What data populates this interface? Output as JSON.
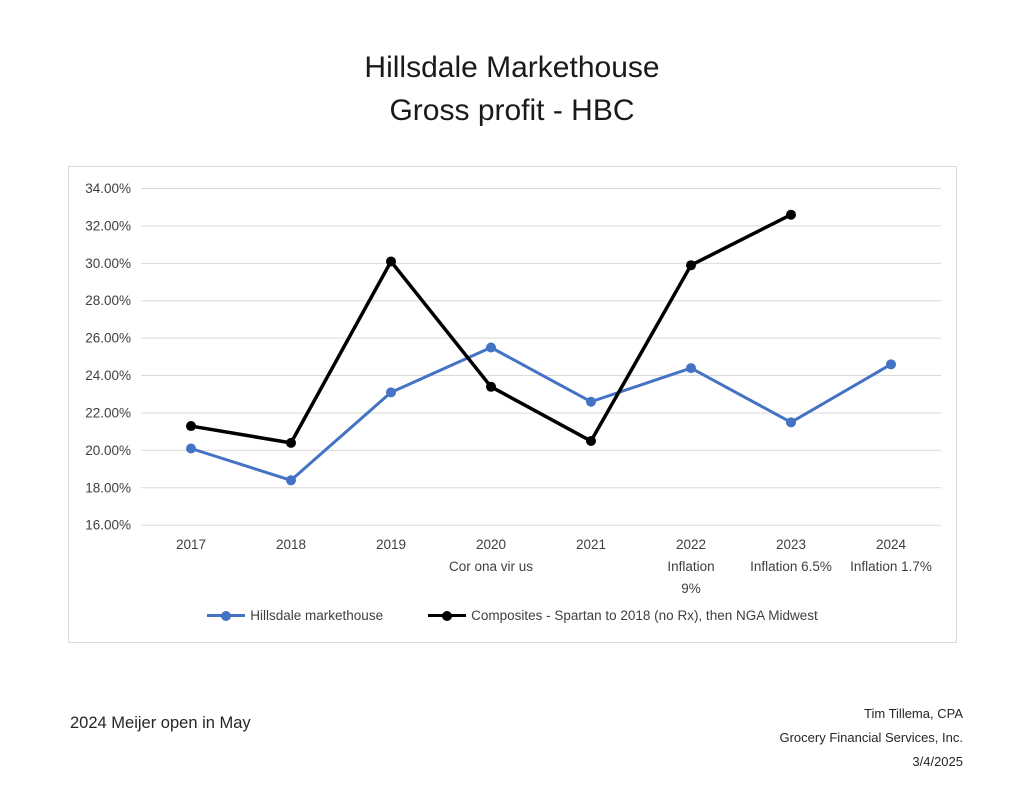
{
  "title": {
    "line1": "Hillsdale Markethouse",
    "line2": "Gross profit - HBC"
  },
  "colors": {
    "series_blue": "#4472C4",
    "series_black": "#000000",
    "gridline": "#d9d9d9",
    "axis_text": "#404040",
    "border": "#d9d9d9"
  },
  "chart_data": {
    "type": "line",
    "title": "Hillsdale Markethouse Gross profit - HBC",
    "xlabel": "",
    "ylabel": "",
    "grid": true,
    "legend_position": "bottom",
    "ylim": [
      16,
      34
    ],
    "ytick_step": 2,
    "yticks": [
      "34.00%",
      "32.00%",
      "30.00%",
      "28.00%",
      "26.00%",
      "24.00%",
      "22.00%",
      "20.00%",
      "18.00%",
      "16.00%"
    ],
    "categories": [
      "2017",
      "2018",
      "2019",
      "2020",
      "2021",
      "2022",
      "2023",
      "2024"
    ],
    "category_sublabels": [
      [],
      [],
      [],
      [
        "Cor ona vir us"
      ],
      [],
      [
        "Inflation",
        "9%"
      ],
      [
        "Inflation 6.5%"
      ],
      [
        "Inflation 1.7%"
      ]
    ],
    "series": [
      {
        "name": "Hillsdale markethouse",
        "color": "#4472C4",
        "values": [
          20.1,
          18.4,
          23.1,
          25.5,
          22.6,
          24.4,
          21.5,
          24.6
        ]
      },
      {
        "name": "Composites - Spartan to 2018 (no Rx), then NGA Midwest",
        "color": "#000000",
        "values": [
          21.3,
          20.4,
          30.1,
          23.4,
          20.5,
          29.9,
          32.6,
          null
        ]
      }
    ]
  },
  "annotations": {
    "bottom_left": "2024 Meijer open in May",
    "bottom_right_lines": [
      "Tim Tillema, CPA",
      "Grocery Financial Services, Inc.",
      "3/4/2025"
    ]
  }
}
